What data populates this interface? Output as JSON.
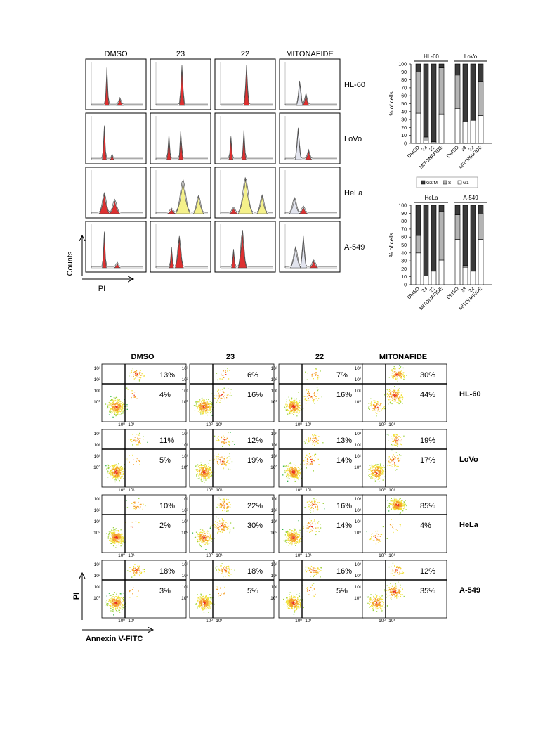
{
  "histogram_panel": {
    "columns": [
      "DMSO",
      "23",
      "22",
      "MITONAFIDE"
    ],
    "rows": [
      "HL-60",
      "LoVo",
      "HeLa",
      "A-549"
    ],
    "y_axis_label": "Counts",
    "x_axis_label": "PI"
  },
  "bar_legend": {
    "items": [
      "G2/M",
      "S",
      "G1"
    ]
  },
  "scatter_panel": {
    "columns": [
      "DMSO",
      "23",
      "22",
      "MITONAFIDE"
    ],
    "rows": [
      "HL-60",
      "LoVo",
      "HeLa",
      "A-549"
    ],
    "y_axis_label": "PI",
    "x_axis_label": "Annexin V-FITC",
    "y_ticks": [
      "10³",
      "10²",
      "10¹",
      "10⁰"
    ],
    "x_ticks": [
      "10⁰",
      "10¹"
    ]
  },
  "colors": {
    "g2m": "#3a3a3a",
    "s": "#b4b4b4",
    "g1": "#ffffff",
    "peak_red": "#dd3030",
    "peak_yellow": "#f4f08a"
  },
  "chart_data": [
    {
      "type": "bar",
      "stacked": true,
      "cell_lines": [
        "HL-60",
        "LoVo"
      ],
      "categories": [
        "DMSO",
        "23",
        "22",
        "MITONAFIDE"
      ],
      "ylabel": "% of cells",
      "ylim": [
        0,
        100
      ],
      "yticks": [
        0,
        10,
        20,
        30,
        40,
        50,
        60,
        70,
        80,
        90,
        100
      ],
      "groups": [
        {
          "name": "HL-60",
          "series": [
            {
              "name": "G1",
              "values": [
                38,
                3,
                0,
                37
              ]
            },
            {
              "name": "S",
              "values": [
                52,
                5,
                2,
                58
              ]
            },
            {
              "name": "G2/M",
              "values": [
                10,
                92,
                98,
                5
              ]
            }
          ]
        },
        {
          "name": "LoVo",
          "series": [
            {
              "name": "G1",
              "values": [
                44,
                28,
                29,
                35
              ]
            },
            {
              "name": "S",
              "values": [
                42,
                0,
                0,
                43
              ]
            },
            {
              "name": "G2/M",
              "values": [
                14,
                72,
                71,
                22
              ]
            }
          ]
        }
      ]
    },
    {
      "type": "bar",
      "stacked": true,
      "cell_lines": [
        "HeLa",
        "A-549"
      ],
      "categories": [
        "DMSO",
        "23",
        "22",
        "MITONAFIDE"
      ],
      "ylabel": "% of cells",
      "ylim": [
        0,
        100
      ],
      "yticks": [
        0,
        10,
        20,
        30,
        40,
        50,
        60,
        70,
        80,
        90,
        100
      ],
      "groups": [
        {
          "name": "HeLa",
          "series": [
            {
              "name": "G1",
              "values": [
                40,
                11,
                17,
                31
              ]
            },
            {
              "name": "S",
              "values": [
                22,
                0,
                0,
                61
              ]
            },
            {
              "name": "G2/M",
              "values": [
                38,
                89,
                83,
                8
              ]
            }
          ]
        },
        {
          "name": "A-549",
          "series": [
            {
              "name": "G1",
              "values": [
                57,
                22,
                17,
                57
              ]
            },
            {
              "name": "S",
              "values": [
                31,
                2,
                0,
                33
              ]
            },
            {
              "name": "G2/M",
              "values": [
                12,
                76,
                83,
                10
              ]
            }
          ]
        }
      ]
    },
    {
      "type": "scatter",
      "description_free": true,
      "xlabel": "Annexin V-FITC",
      "ylabel": "PI",
      "rows": [
        "HL-60",
        "LoVo",
        "HeLa",
        "A-549"
      ],
      "columns": [
        "DMSO",
        "23",
        "22",
        "MITONAFIDE"
      ],
      "upper_right_pct": [
        [
          "13%",
          "6%",
          "7%",
          "30%"
        ],
        [
          "11%",
          "12%",
          "13%",
          "19%"
        ],
        [
          "10%",
          "22%",
          "16%",
          "85%"
        ],
        [
          "18%",
          "18%",
          "16%",
          "12%"
        ]
      ],
      "lower_right_pct": [
        [
          "4%",
          "16%",
          "16%",
          "44%"
        ],
        [
          "5%",
          "19%",
          "14%",
          "17%"
        ],
        [
          "2%",
          "30%",
          "14%",
          "4%"
        ],
        [
          "3%",
          "5%",
          "5%",
          "35%"
        ]
      ]
    }
  ]
}
